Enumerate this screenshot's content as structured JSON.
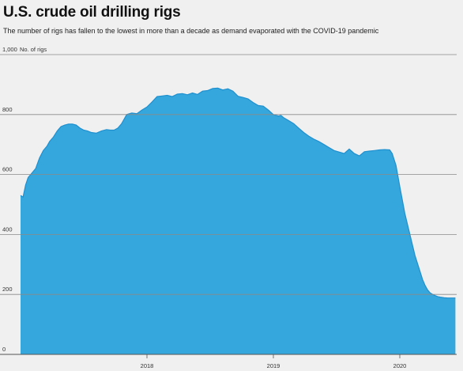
{
  "header": {
    "title": "U.S. crude oil drilling rigs",
    "subtitle": "The number of rigs has fallen to the lowest in more than a decade as demand evaporated with the COVID-19 pandemic"
  },
  "colors": {
    "area_fill": "#36a7dd",
    "area_stroke": "#1e90cf",
    "gridline": "#8a8a8a",
    "background": "#f0f0f0"
  },
  "chart_data": {
    "type": "area",
    "title": "U.S. crude oil drilling rigs",
    "ylabel": "No. of rigs",
    "ylim": [
      0,
      1000
    ],
    "yticks": [
      0,
      200,
      400,
      600,
      800,
      1000
    ],
    "ytick_labels": [
      "0",
      "200",
      "400",
      "600",
      "800",
      "1,000"
    ],
    "xlim": [
      2017.0,
      2020.45
    ],
    "xticks": [
      2018,
      2019,
      2020
    ],
    "xtick_labels": [
      "2018",
      "2019",
      "2020"
    ],
    "grid": true,
    "series": [
      {
        "x": [
          2017.0,
          2017.02,
          2017.04,
          2017.06,
          2017.09,
          2017.12,
          2017.15,
          2017.18,
          2017.21,
          2017.23,
          2017.26,
          2017.29,
          2017.32,
          2017.35,
          2017.38,
          2017.41,
          2017.44,
          2017.47,
          2017.5,
          2017.53,
          2017.56,
          2017.6,
          2017.64,
          2017.68,
          2017.71,
          2017.74,
          2017.77,
          2017.8,
          2017.84,
          2017.88,
          2017.92,
          2017.96,
          2018.0,
          2018.04,
          2018.08,
          2018.12,
          2018.16,
          2018.2,
          2018.24,
          2018.28,
          2018.32,
          2018.36,
          2018.4,
          2018.44,
          2018.48,
          2018.52,
          2018.56,
          2018.6,
          2018.64,
          2018.68,
          2018.72,
          2018.76,
          2018.8,
          2018.84,
          2018.88,
          2018.92,
          2018.96,
          2019.0,
          2019.04,
          2019.06,
          2019.08,
          2019.12,
          2019.16,
          2019.2,
          2019.24,
          2019.28,
          2019.32,
          2019.36,
          2019.4,
          2019.44,
          2019.48,
          2019.52,
          2019.56,
          2019.6,
          2019.64,
          2019.68,
          2019.72,
          2019.76,
          2019.8,
          2019.84,
          2019.88,
          2019.92,
          2019.94,
          2019.97,
          2020.0,
          2020.04,
          2020.08,
          2020.12,
          2020.15,
          2020.18,
          2020.2,
          2020.22,
          2020.24,
          2020.26,
          2020.28,
          2020.3,
          2020.32,
          2020.35,
          2020.38,
          2020.41,
          2020.44
        ],
        "values": [
          530,
          525,
          565,
          590,
          605,
          620,
          655,
          680,
          695,
          710,
          725,
          745,
          760,
          765,
          768,
          768,
          765,
          755,
          748,
          745,
          740,
          738,
          745,
          750,
          748,
          748,
          755,
          770,
          800,
          805,
          803,
          815,
          825,
          842,
          860,
          862,
          864,
          860,
          868,
          870,
          866,
          872,
          867,
          878,
          880,
          887,
          888,
          882,
          886,
          878,
          861,
          857,
          852,
          840,
          830,
          828,
          815,
          800,
          795,
          797,
          790,
          780,
          770,
          755,
          740,
          728,
          718,
          710,
          700,
          690,
          680,
          675,
          670,
          685,
          670,
          662,
          676,
          678,
          680,
          682,
          683,
          682,
          670,
          630,
          560,
          470,
          400,
          330,
          290,
          250,
          230,
          215,
          205,
          200,
          196,
          193,
          191,
          189,
          188,
          188,
          188
        ]
      }
    ]
  }
}
